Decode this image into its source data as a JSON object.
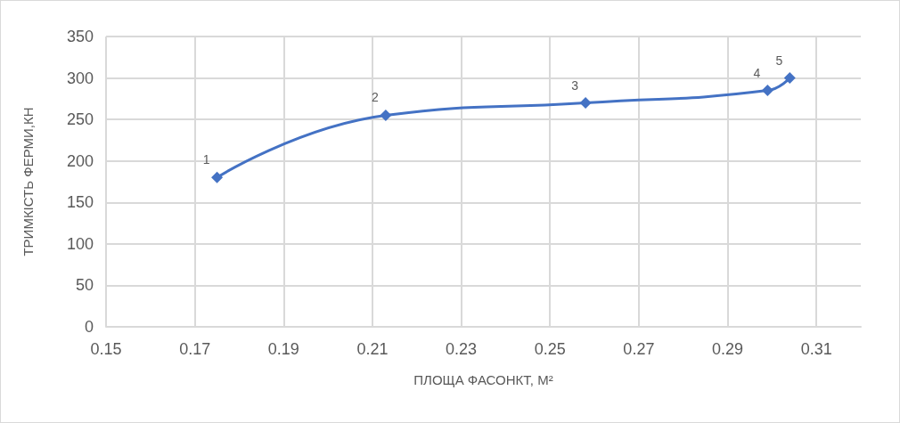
{
  "chart_data": {
    "type": "line",
    "xlabel": "ПЛОЩА ФАСОНКТ, М²",
    "ylabel": "ТРИМКІСТЬ ФЕРМИ,КН",
    "x": [
      0.175,
      0.213,
      0.258,
      0.299,
      0.304
    ],
    "series": [
      {
        "color": "#4472c4",
        "values": [
          180,
          255,
          270,
          285,
          300
        ]
      }
    ],
    "xlim": [
      0.15,
      0.32
    ],
    "xticks": [
      0.15,
      0.17,
      0.19,
      0.21,
      0.23,
      0.25,
      0.27,
      0.29,
      0.31
    ],
    "ylim": [
      0,
      350
    ],
    "yticks": [
      0,
      50,
      100,
      150,
      200,
      250,
      300,
      350
    ],
    "grid": true,
    "marker": "diamond",
    "line_style": "solid",
    "annotations": [
      {
        "text": "1",
        "x": 0.175,
        "y": 180
      },
      {
        "text": "2",
        "x": 0.213,
        "y": 255
      },
      {
        "text": "3",
        "x": 0.258,
        "y": 270
      },
      {
        "text": "4",
        "x": 0.299,
        "y": 285
      },
      {
        "text": "5",
        "x": 0.304,
        "y": 300
      }
    ]
  }
}
